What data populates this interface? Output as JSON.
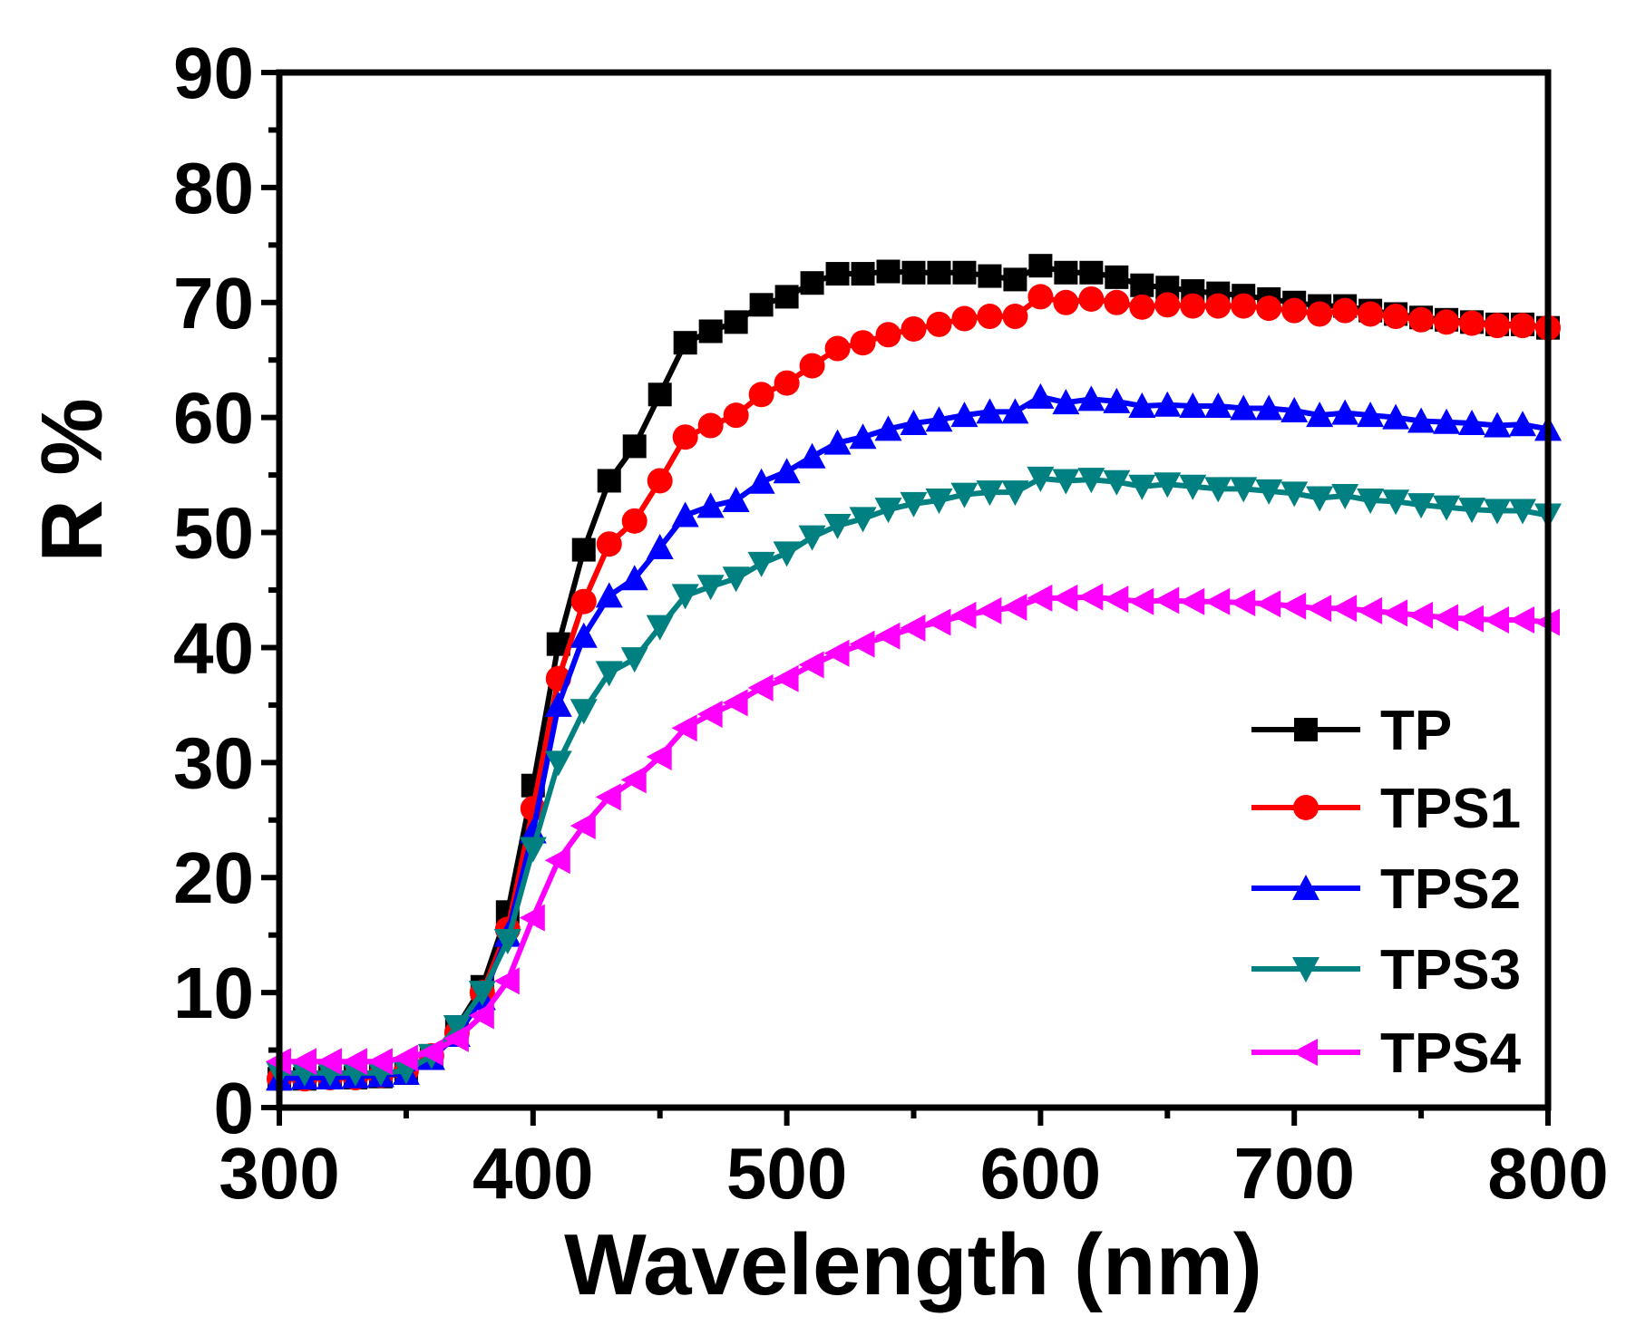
{
  "chart_data": {
    "type": "line",
    "title": "",
    "xlabel": "Wavelength (nm)",
    "ylabel": "R %",
    "xlim": [
      300,
      800
    ],
    "ylim": [
      0,
      90
    ],
    "xticks": [
      300,
      400,
      500,
      600,
      700,
      800
    ],
    "yticks": [
      0,
      10,
      20,
      30,
      40,
      50,
      60,
      70,
      80,
      90
    ],
    "grid": false,
    "legend_position": "bottom-right",
    "x": [
      300,
      310,
      320,
      330,
      340,
      350,
      360,
      370,
      380,
      390,
      400,
      410,
      420,
      430,
      440,
      450,
      460,
      470,
      480,
      490,
      500,
      510,
      520,
      530,
      540,
      550,
      560,
      570,
      580,
      590,
      600,
      610,
      620,
      630,
      640,
      650,
      660,
      670,
      680,
      690,
      700,
      710,
      720,
      730,
      740,
      750,
      760,
      770,
      780,
      790,
      800
    ],
    "series": [
      {
        "name": "TP",
        "color": "#000000",
        "marker": "square",
        "values": [
          2.5,
          2.5,
          2.6,
          2.6,
          2.7,
          3,
          4.5,
          7,
          10.5,
          17,
          28,
          40.3,
          48.5,
          54.5,
          57.5,
          62,
          66.5,
          67.5,
          68.3,
          69.8,
          70.5,
          71.7,
          72.5,
          72.5,
          72.7,
          72.6,
          72.6,
          72.6,
          72.3,
          72,
          73.2,
          72.6,
          72.6,
          72.2,
          71.5,
          71.3,
          71,
          70.8,
          70.6,
          70.3,
          70,
          69.7,
          69.7,
          69.3,
          69,
          68.7,
          68.5,
          68.3,
          68.1,
          68.1,
          67.8
        ]
      },
      {
        "name": "TPS1",
        "color": "#ff0000",
        "marker": "circle",
        "values": [
          2.5,
          2.5,
          2.6,
          2.6,
          2.8,
          3.2,
          4.5,
          6.5,
          10,
          15.5,
          26,
          37.3,
          44,
          49,
          51,
          54.5,
          58.3,
          59.3,
          60.2,
          62,
          63,
          64.5,
          66,
          66.5,
          67.2,
          67.7,
          68.1,
          68.6,
          68.8,
          68.8,
          70.5,
          70,
          70.3,
          70,
          69.6,
          69.8,
          69.7,
          69.7,
          69.7,
          69.5,
          69.3,
          69,
          69.3,
          69,
          68.8,
          68.5,
          68.3,
          68.2,
          68,
          68,
          67.8
        ]
      },
      {
        "name": "TPS2",
        "color": "#0000ff",
        "marker": "triangle-up",
        "values": [
          2.5,
          2.6,
          2.6,
          2.7,
          2.8,
          3,
          4.3,
          6.3,
          9.5,
          15,
          24,
          35,
          41,
          44.5,
          46,
          48.7,
          51.5,
          52.3,
          52.8,
          54.4,
          55.3,
          56.6,
          57.8,
          58.3,
          59,
          59.5,
          59.8,
          60.2,
          60.5,
          60.5,
          61.8,
          61.3,
          61.6,
          61.4,
          61,
          61.1,
          61,
          61,
          60.8,
          60.8,
          60.6,
          60.2,
          60.4,
          60.2,
          60,
          59.7,
          59.6,
          59.5,
          59.3,
          59.4,
          59
        ]
      },
      {
        "name": "TPS3",
        "color": "#008080",
        "marker": "triangle-down",
        "values": [
          3,
          3,
          3,
          3,
          3,
          3.2,
          4.5,
          7,
          10,
          14.5,
          22.5,
          30,
          34.5,
          37.8,
          39,
          41.8,
          44.5,
          45.3,
          46,
          47.3,
          48.2,
          49.6,
          50.6,
          51.2,
          52,
          52.5,
          52.8,
          53.3,
          53.5,
          53.5,
          54.7,
          54.5,
          54.6,
          54.4,
          54,
          54.2,
          54,
          53.8,
          53.8,
          53.6,
          53.4,
          53,
          53.2,
          52.8,
          52.7,
          52.4,
          52.2,
          52,
          51.9,
          51.9,
          51.5
        ]
      },
      {
        "name": "TPS4",
        "color": "#ff00ff",
        "marker": "triangle-left",
        "values": [
          4,
          4,
          4,
          4,
          4,
          4.3,
          4.8,
          6,
          8,
          11,
          16.5,
          21.5,
          24.5,
          27,
          28.5,
          30.5,
          33,
          34.2,
          35.2,
          36.5,
          37.3,
          38.5,
          39.5,
          40.3,
          41,
          41.7,
          42.2,
          42.8,
          43.2,
          43.5,
          44.3,
          44.3,
          44.4,
          44.2,
          44,
          44.1,
          44,
          44,
          43.9,
          43.8,
          43.6,
          43.4,
          43.4,
          43.2,
          43,
          42.8,
          42.6,
          42.5,
          42.4,
          42.4,
          42.2
        ]
      }
    ]
  }
}
